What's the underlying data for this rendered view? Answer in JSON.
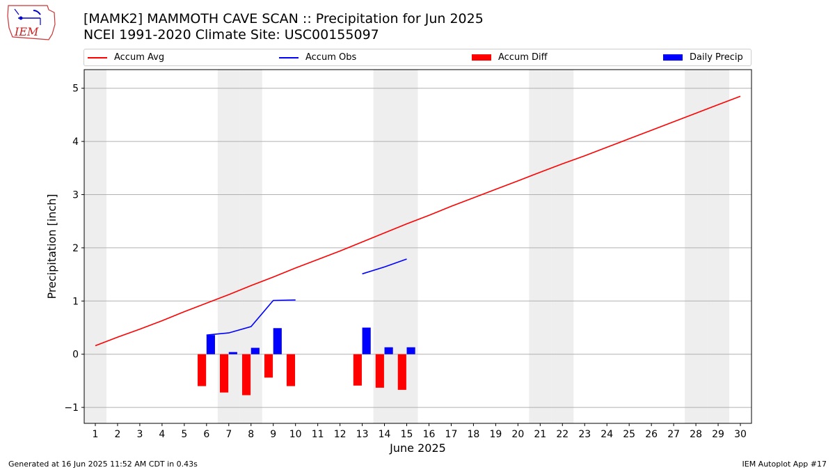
{
  "header": {
    "title_line1": "[MAMK2] MAMMOTH CAVE SCAN :: Precipitation for Jun 2025",
    "title_line2": "NCEI 1991-2020 Climate Site: USC00155097",
    "logo_text": "IEM"
  },
  "footer": {
    "generated": "Generated at 16 Jun 2025 11:52 AM CDT in 0.43s",
    "app": "IEM Autoplot App #17"
  },
  "colors": {
    "avg": "#ff0000",
    "obs": "#0000ff",
    "diff": "#ff0000",
    "daily": "#0000ff",
    "weekend_shade": "#eeeeee",
    "grid": "#b0b0b0"
  },
  "chart_data": {
    "type": "bar",
    "xlabel": "June 2025",
    "ylabel": "Precipitation [inch]",
    "xlim": [
      0.5,
      30.5
    ],
    "ylim": [
      -1.3,
      5.35
    ],
    "yticks": [
      -1,
      0,
      1,
      2,
      3,
      4,
      5
    ],
    "ytick_labels": [
      "−1",
      "0",
      "1",
      "2",
      "3",
      "4",
      "5"
    ],
    "xticks": [
      1,
      2,
      3,
      4,
      5,
      6,
      7,
      8,
      9,
      10,
      11,
      12,
      13,
      14,
      15,
      16,
      17,
      18,
      19,
      20,
      21,
      22,
      23,
      24,
      25,
      26,
      27,
      28,
      29,
      30
    ],
    "grid": "horizontal",
    "weekend_days": [
      1,
      7,
      8,
      14,
      15,
      21,
      22,
      28,
      29
    ],
    "legend": [
      "Accum Avg",
      "Accum Obs",
      "Accum Diff",
      "Daily Precip"
    ],
    "series": [
      {
        "name": "Accum Avg",
        "type": "line",
        "x": [
          1,
          2,
          3,
          4,
          5,
          6,
          7,
          8,
          9,
          10,
          11,
          12,
          13,
          14,
          15,
          16,
          17,
          18,
          19,
          20,
          21,
          22,
          23,
          24,
          25,
          26,
          27,
          28,
          29,
          30
        ],
        "values": [
          0.16,
          0.32,
          0.47,
          0.63,
          0.8,
          0.96,
          1.12,
          1.29,
          1.45,
          1.62,
          1.78,
          1.94,
          2.11,
          2.28,
          2.45,
          2.61,
          2.78,
          2.94,
          3.1,
          3.26,
          3.42,
          3.58,
          3.73,
          3.89,
          4.05,
          4.21,
          4.37,
          4.53,
          4.69,
          4.85
        ]
      },
      {
        "name": "Accum Obs",
        "type": "line",
        "x": [
          6,
          7,
          8,
          9,
          10,
          null,
          13,
          14,
          15
        ],
        "values": [
          0.36,
          0.4,
          0.52,
          1.01,
          1.02,
          null,
          1.51,
          1.64,
          1.79
        ]
      },
      {
        "name": "Accum Diff",
        "type": "bar",
        "x": [
          6,
          7,
          8,
          9,
          10,
          13,
          14,
          15
        ],
        "values": [
          -0.6,
          -0.72,
          -0.77,
          -0.44,
          -0.6,
          -0.59,
          -0.63,
          -0.67
        ]
      },
      {
        "name": "Daily Precip",
        "type": "bar",
        "x": [
          6,
          7,
          8,
          9,
          10,
          13,
          14,
          15
        ],
        "values": [
          0.36,
          0.04,
          0.12,
          0.49,
          0.0,
          0.5,
          0.13,
          0.13
        ]
      }
    ]
  }
}
